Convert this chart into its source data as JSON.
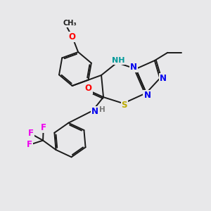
{
  "background_color": "#e8e8ea",
  "bond_color": "#1a1a1a",
  "atom_colors": {
    "O": "#ff0000",
    "N": "#0000ee",
    "NH": "#0000ee",
    "S": "#bbaa00",
    "F": "#ee00ee",
    "C": "#1a1a1a"
  },
  "figsize": [
    3.0,
    3.0
  ],
  "dpi": 100,
  "xlim": [
    0,
    10
  ],
  "ylim": [
    0,
    10
  ]
}
